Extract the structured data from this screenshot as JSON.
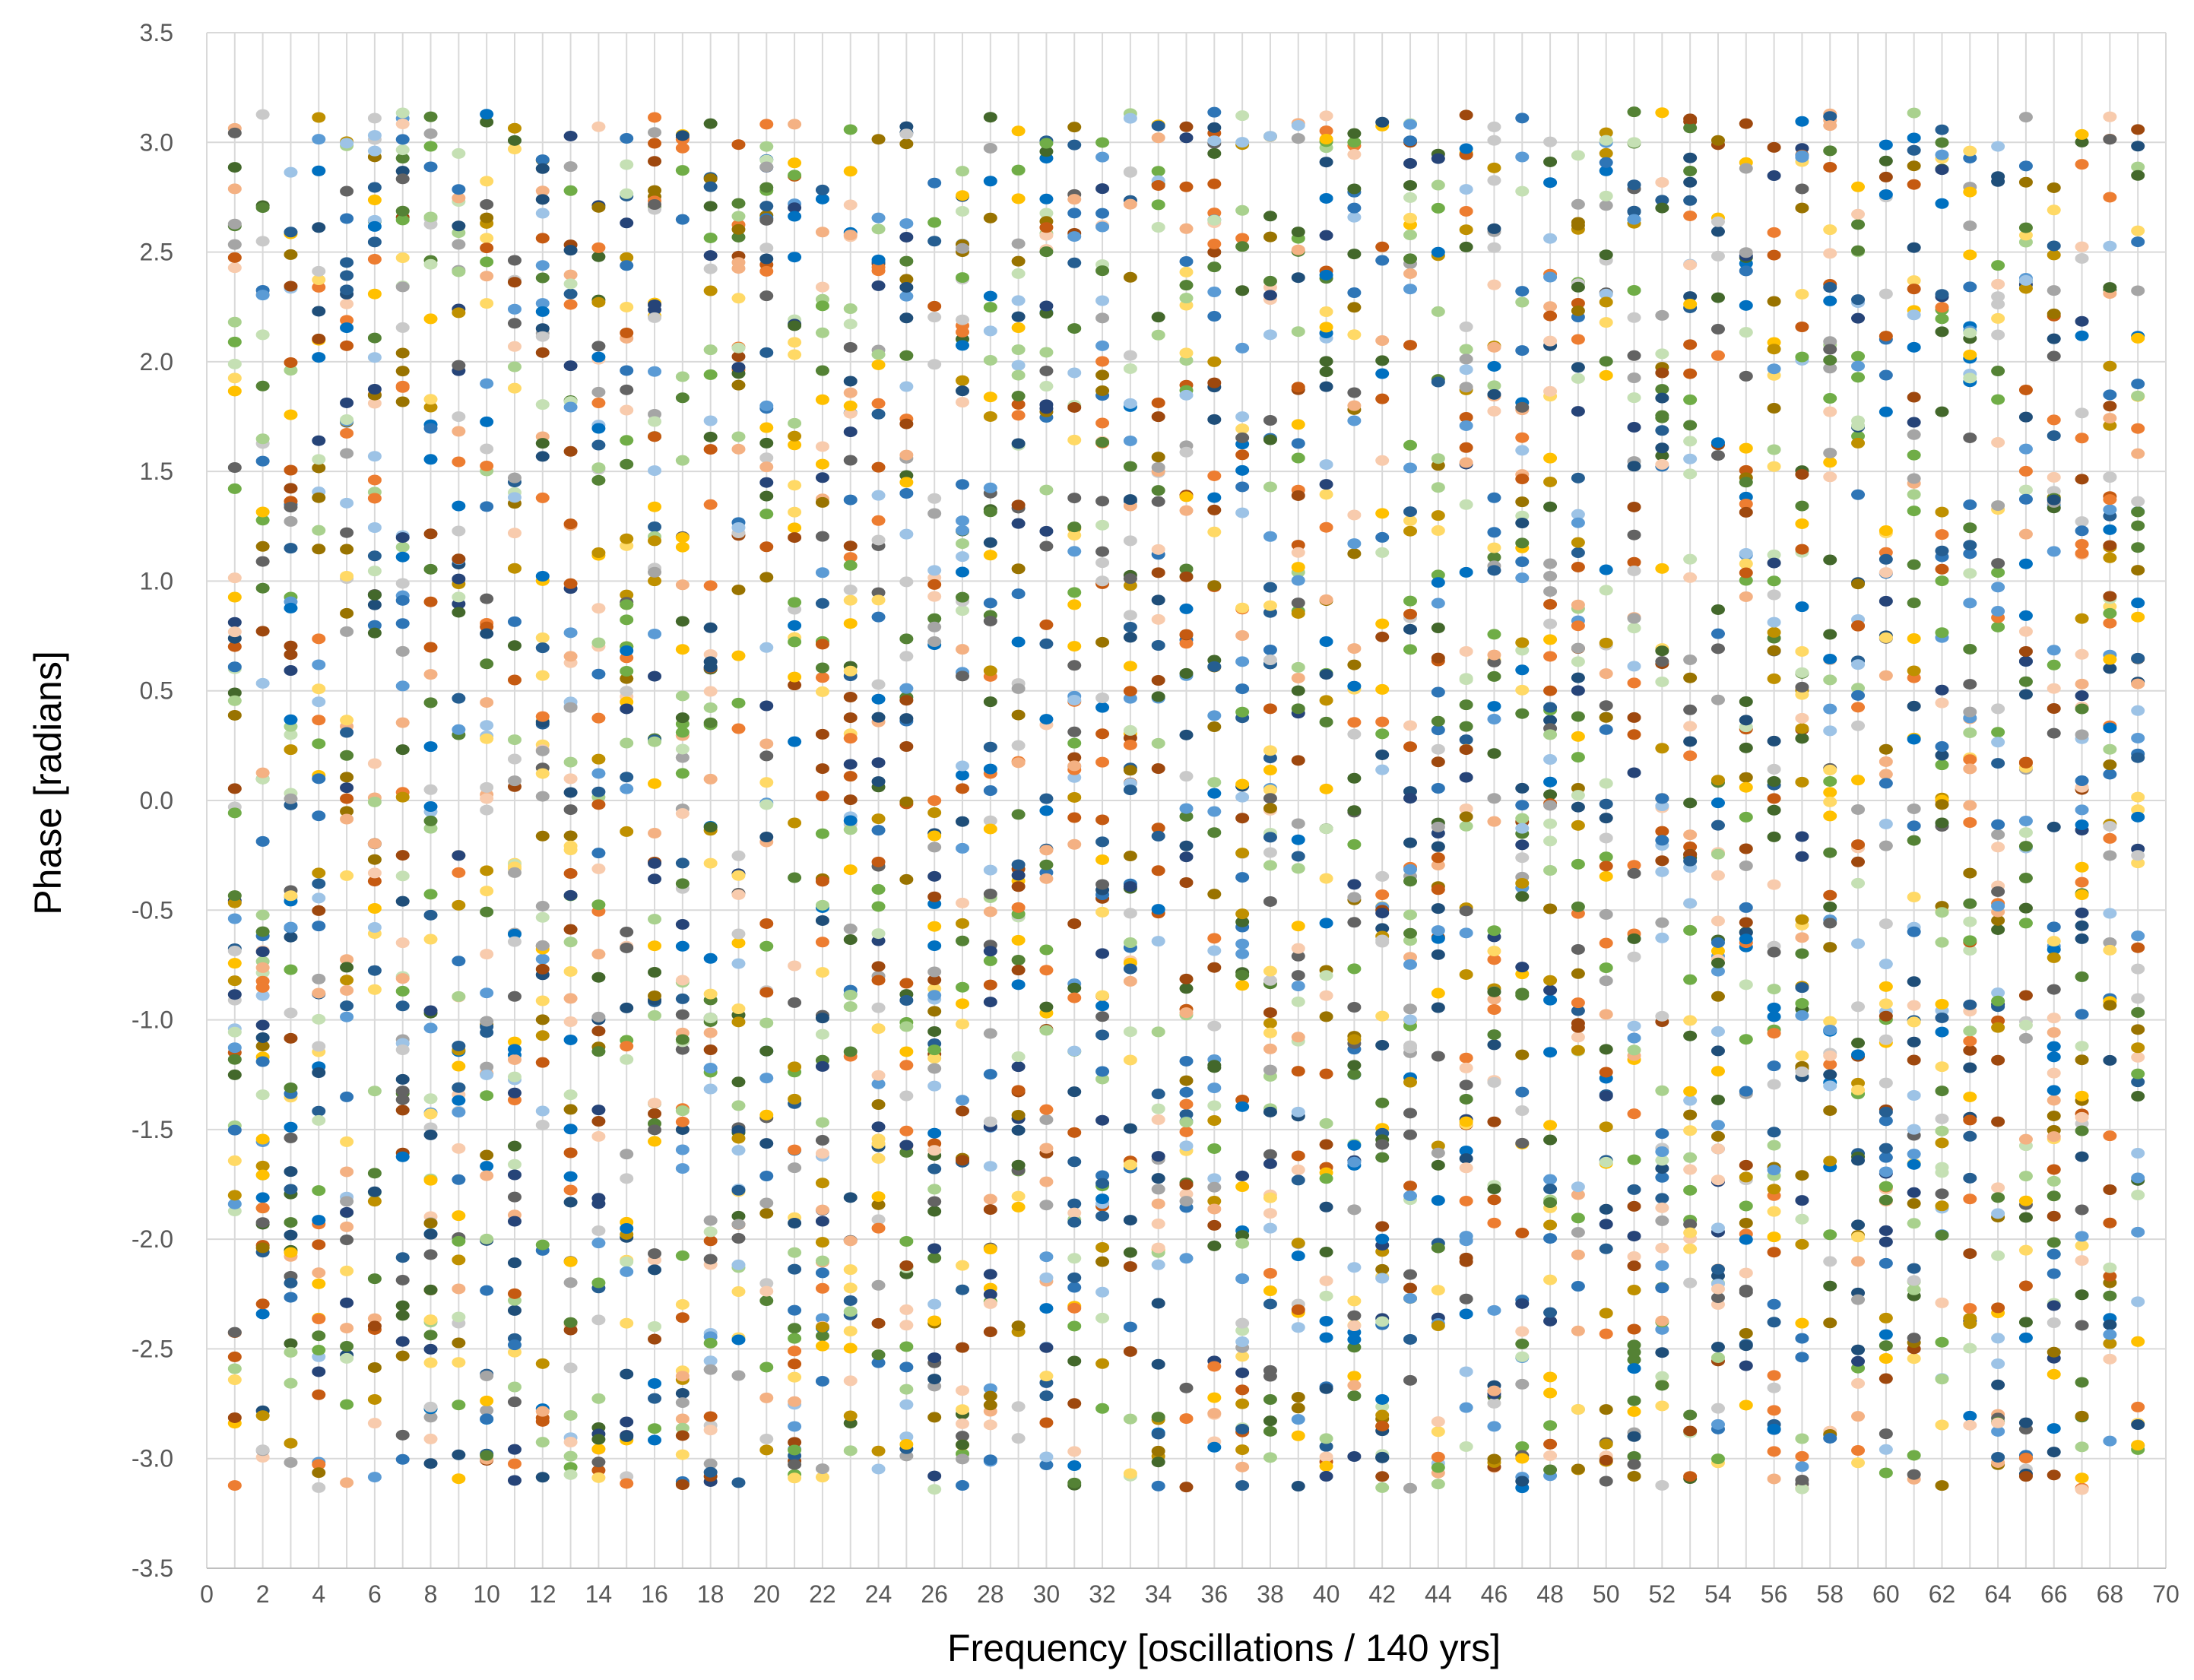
{
  "chart_data": {
    "type": "scatter",
    "title": "",
    "xlabel": "Frequency [oscillations / 140 yrs]",
    "ylabel": "Phase [radians]",
    "xlim": [
      0,
      70
    ],
    "ylim": [
      -3.5,
      3.5
    ],
    "x_ticks": [
      "0",
      "2",
      "4",
      "6",
      "8",
      "10",
      "12",
      "14",
      "16",
      "18",
      "20",
      "22",
      "24",
      "26",
      "28",
      "30",
      "32",
      "34",
      "36",
      "38",
      "40",
      "42",
      "44",
      "46",
      "48",
      "50",
      "52",
      "54",
      "56",
      "58",
      "60",
      "62",
      "64",
      "66",
      "68",
      "70"
    ],
    "y_ticks": [
      "3.5",
      "3.0",
      "2.5",
      "2.0",
      "1.5",
      "1.0",
      "0.5",
      "0.0",
      "-0.5",
      "-1.0",
      "-1.5",
      "-2.0",
      "-2.5",
      "-3.0",
      "-3.5"
    ],
    "grid": true,
    "legend": "none",
    "x_values": [
      1,
      2,
      3,
      4,
      5,
      6,
      7,
      8,
      9,
      10,
      11,
      12,
      13,
      14,
      15,
      16,
      17,
      18,
      19,
      20,
      21,
      22,
      23,
      24,
      25,
      26,
      27,
      28,
      29,
      30,
      31,
      32,
      33,
      34,
      35,
      36,
      37,
      38,
      39,
      40,
      41,
      42,
      43,
      44,
      45,
      46,
      47,
      48,
      49,
      50,
      51,
      52,
      53,
      54,
      55,
      56,
      57,
      58,
      59,
      60,
      61,
      62,
      63,
      64,
      65,
      66,
      67,
      68,
      69
    ],
    "points_per_frequency": 60,
    "series_colors": [
      "#0070c0",
      "#ed7d31",
      "#a5a5a5",
      "#ffc000",
      "#5b9bd5",
      "#70ad47",
      "#264478",
      "#9e480e",
      "#636363",
      "#997300",
      "#255e91",
      "#43682b",
      "#f4b183",
      "#9dc3e6",
      "#c5e0b4",
      "#c9c9c9",
      "#f8cbad",
      "#1f4e79",
      "#c55a11",
      "#2e75b6",
      "#548235",
      "#bf9000",
      "#ffd966",
      "#a9d18e"
    ],
    "phase_range": [
      -3.14159,
      3.14159
    ]
  }
}
